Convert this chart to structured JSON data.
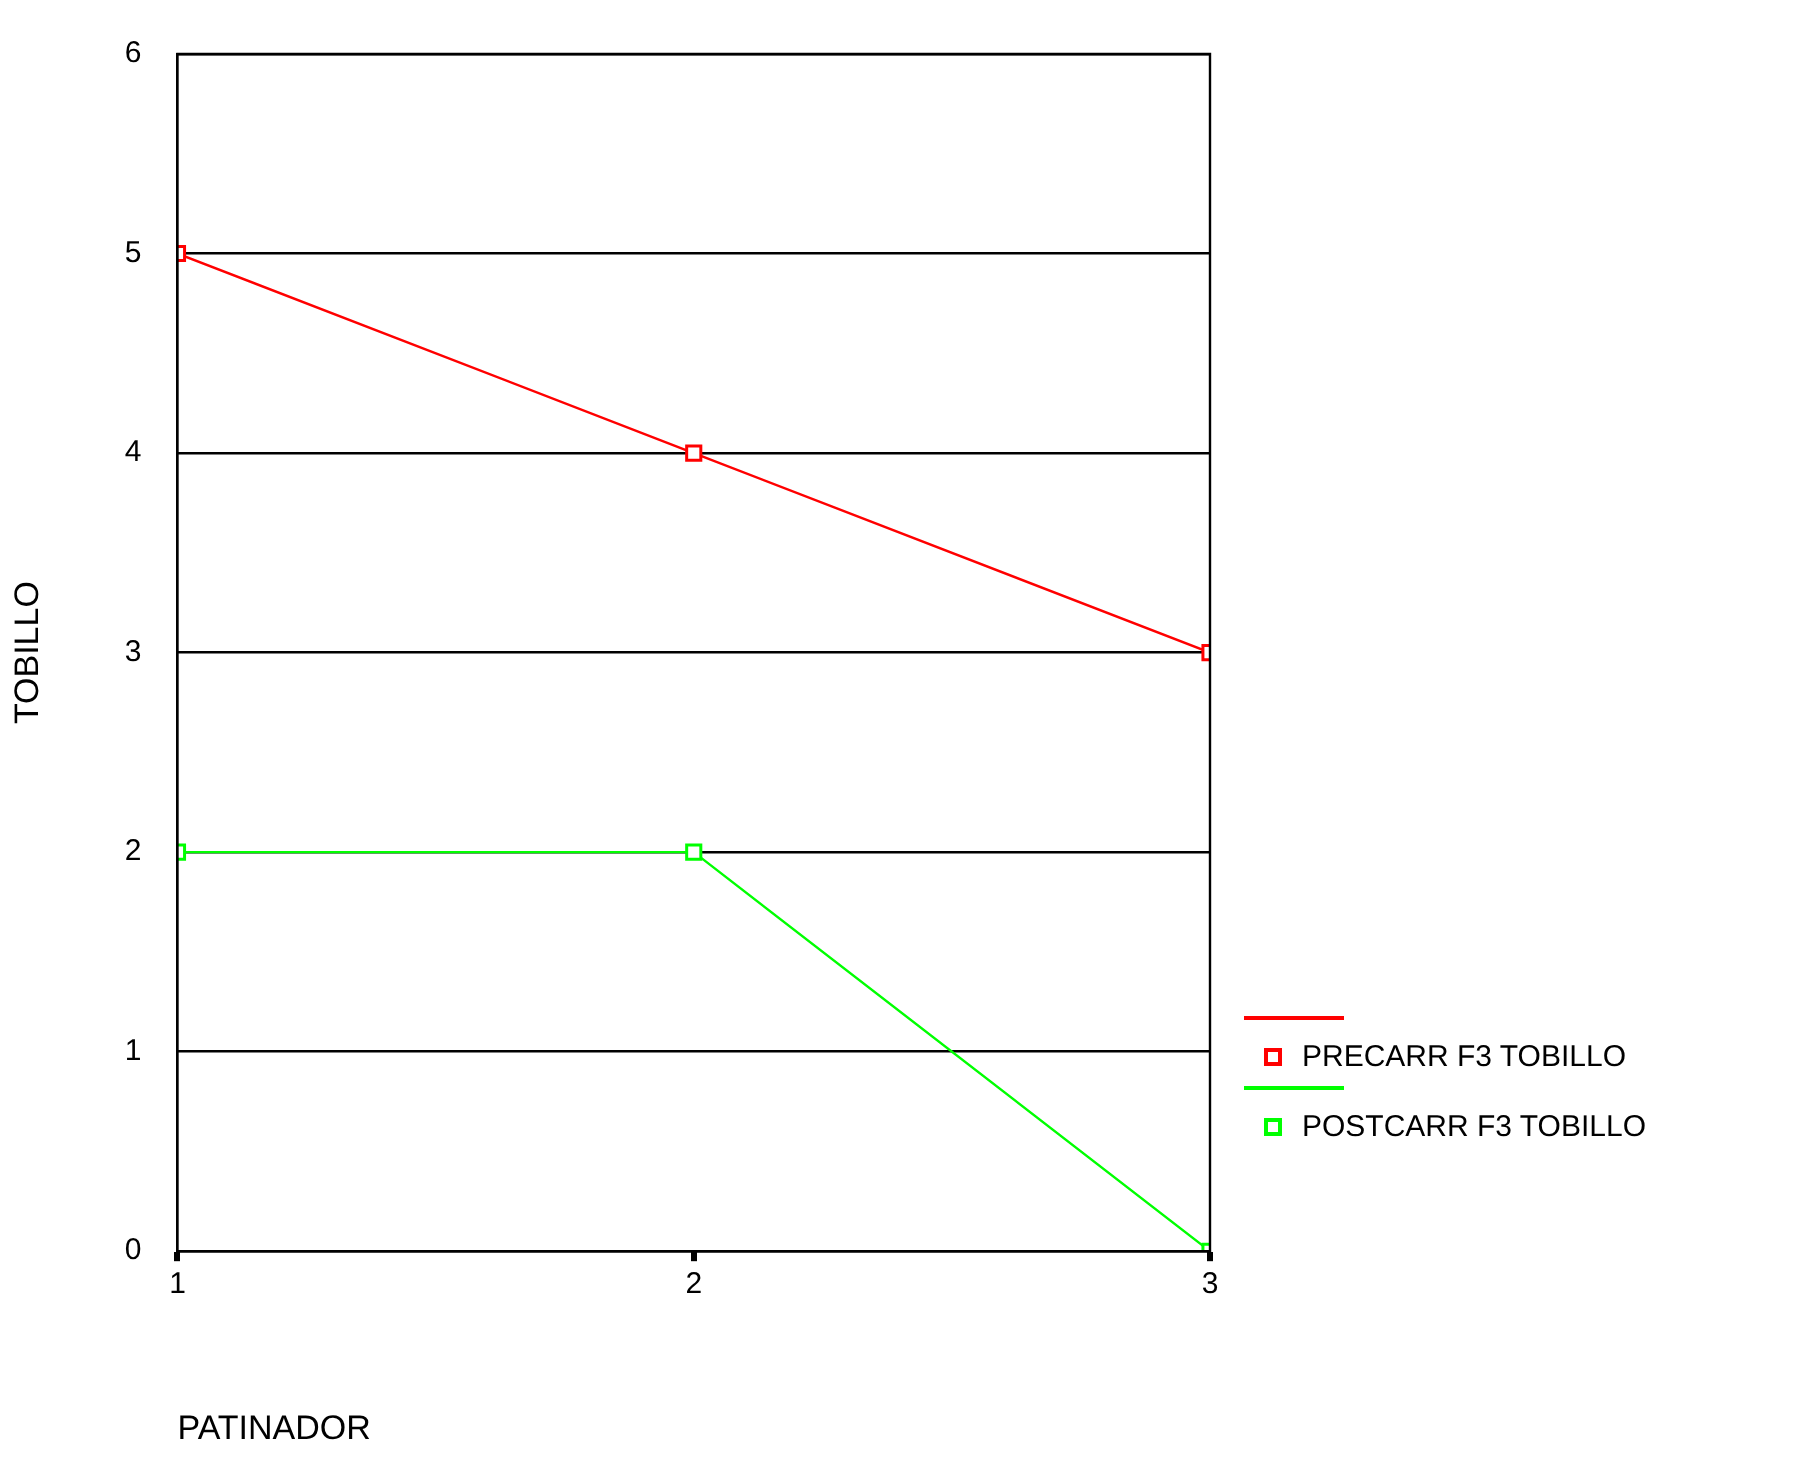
{
  "chart_data": {
    "type": "line",
    "xlabel": "PATINADOR",
    "ylabel": "TOBILLO",
    "x": [
      1,
      2,
      3
    ],
    "xlim": [
      1,
      3
    ],
    "xticks": [
      1,
      2,
      3
    ],
    "ylim": [
      0,
      6
    ],
    "yticks": [
      0,
      1,
      2,
      3,
      4,
      5,
      6
    ],
    "series": [
      {
        "name": "PRECARR F3 TOBILLO",
        "color": "#ff0000",
        "values": [
          5,
          4,
          3
        ]
      },
      {
        "name": "POSTCARR F3 TOBILLO",
        "color": "#00ff00",
        "values": [
          2,
          2,
          0
        ]
      }
    ],
    "grid": "y",
    "legend": "bottom right",
    "marker": "square",
    "line_style": "solid"
  }
}
